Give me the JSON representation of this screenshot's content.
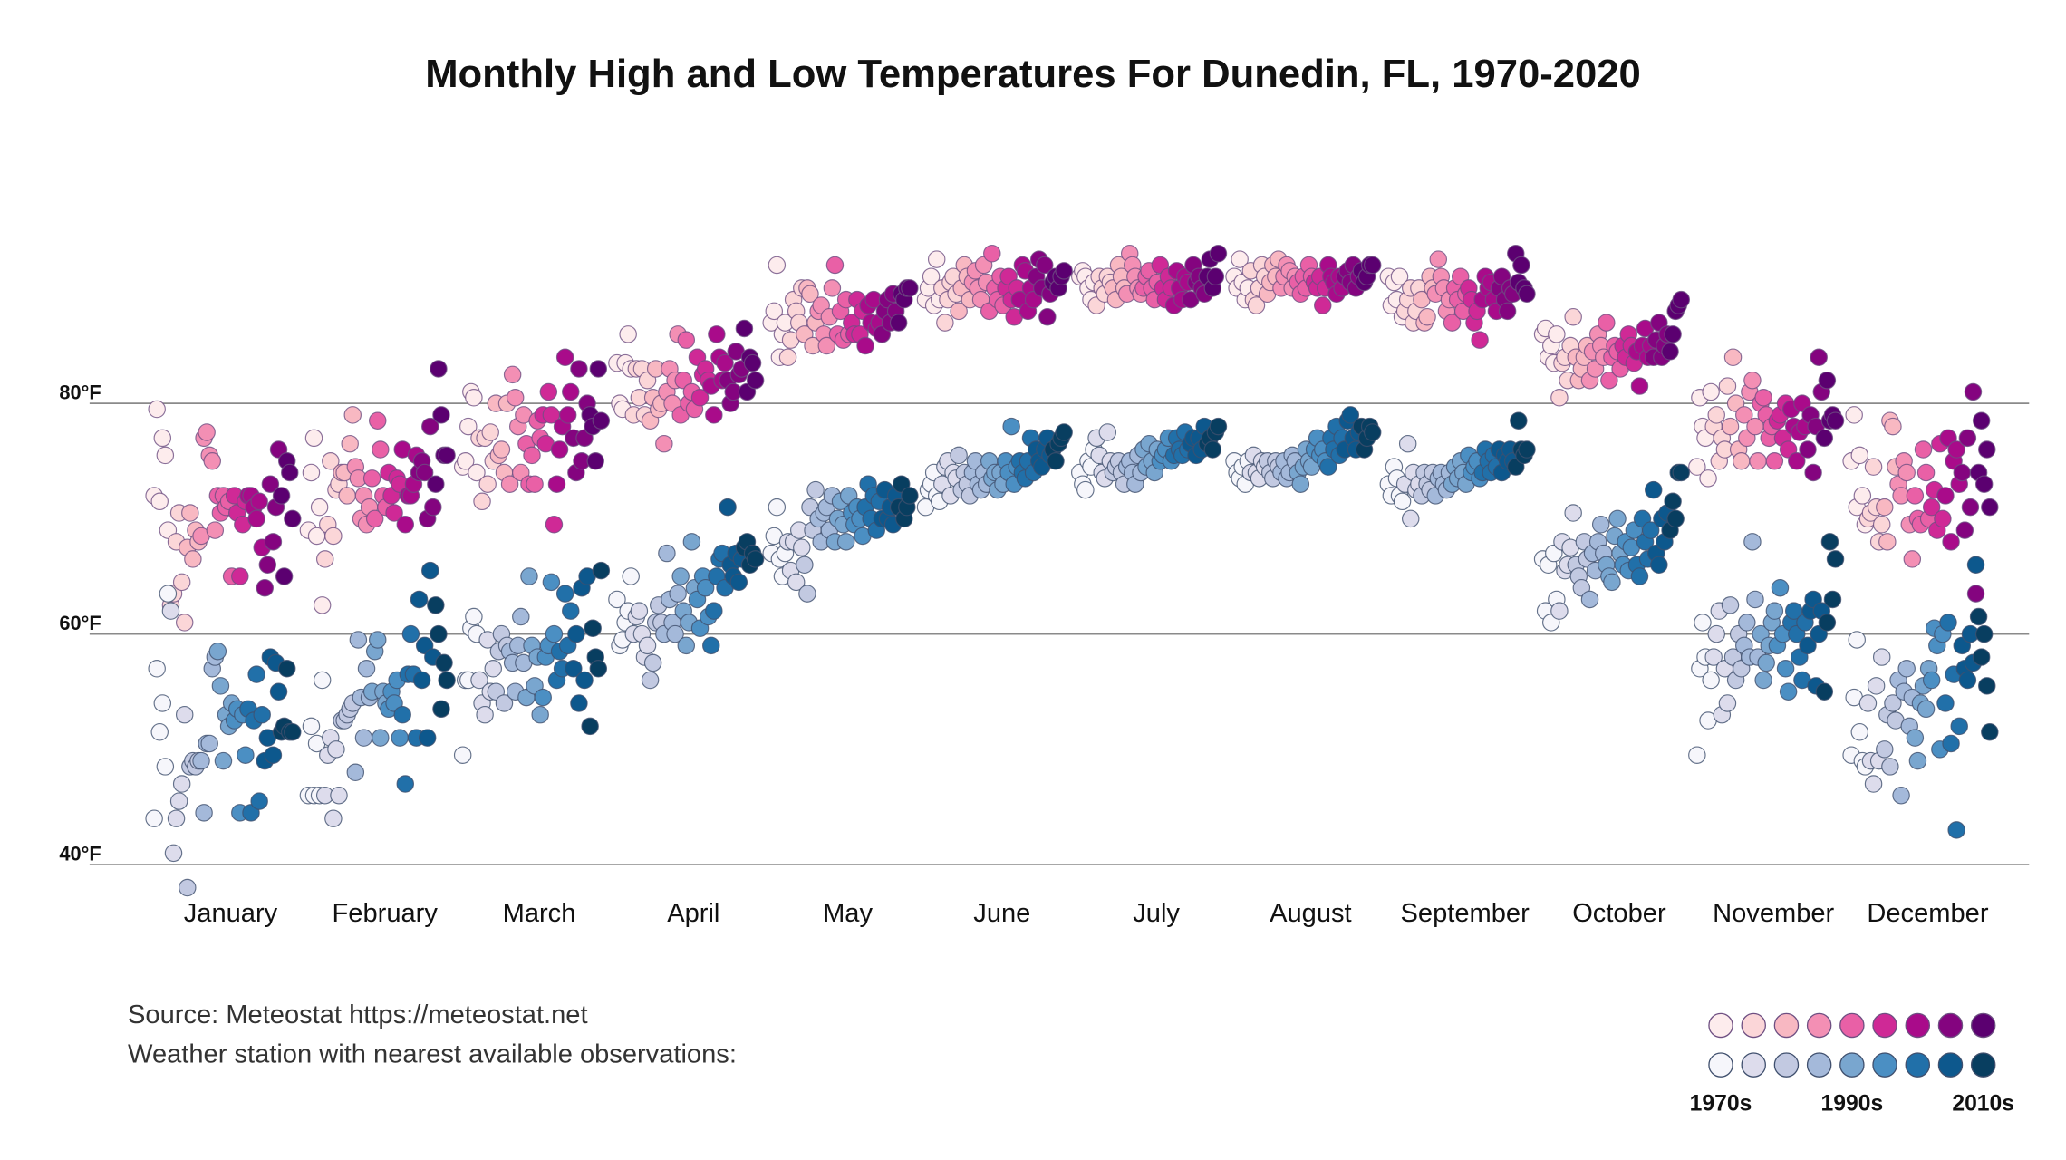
{
  "chart_data": {
    "type": "strip",
    "title": "Monthly High and Low Temperatures For Dunedin, FL, 1970-2020",
    "categories": [
      "January",
      "February",
      "March",
      "April",
      "May",
      "June",
      "July",
      "August",
      "September",
      "October",
      "November",
      "December"
    ],
    "ylim": [
      40,
      100
    ],
    "yticks": [
      {
        "value": 40,
        "label": "40°F"
      },
      {
        "value": 60,
        "label": "60°F"
      },
      {
        "value": 80,
        "label": "80°F"
      }
    ],
    "grid": true,
    "high_colors": [
      "#fdeced",
      "#fbd6d8",
      "#f8b8c2",
      "#f38fb4",
      "#e960a6",
      "#cf2996",
      "#a90b8a",
      "#84047f",
      "#5b0070"
    ],
    "low_colors": [
      "#f6f6fb",
      "#dddcec",
      "#c2c9e1",
      "#a4b9da",
      "#79a6cf",
      "#4b8fc3",
      "#2170a9",
      "#0d588d",
      "#083e60"
    ],
    "highs": [
      [
        72,
        79.5,
        71.5,
        77,
        75.5,
        69,
        62.5,
        63.5,
        68,
        70.5,
        64.5,
        61,
        67.5,
        70.5,
        66.5,
        69,
        68,
        68.5,
        77,
        77.5,
        75.5,
        75,
        69,
        72,
        70.5,
        72,
        71,
        71.5,
        65,
        72,
        70.5,
        65,
        69.5,
        71.5,
        72,
        72,
        71,
        70,
        71.5,
        67.5,
        64,
        66,
        73,
        68,
        71,
        76,
        72,
        65,
        75,
        74,
        70
      ],
      [
        69,
        74,
        77,
        68.5,
        71,
        62.5,
        66.5,
        69.5,
        75,
        68.5,
        72.5,
        73,
        74,
        74,
        72,
        76.5,
        79,
        74.5,
        73.5,
        70,
        72,
        69.5,
        71,
        73.5,
        70,
        78.5,
        76,
        72,
        71,
        74,
        72,
        70.5,
        73.5,
        73,
        76,
        69.5,
        72,
        72,
        73,
        75.5,
        74,
        75,
        74,
        70,
        78,
        71,
        73,
        83,
        79,
        75.5,
        75.5
      ],
      [
        74.5,
        75,
        78,
        81,
        80.5,
        74,
        77,
        71.5,
        77,
        73,
        77.5,
        75,
        80,
        75.5,
        76,
        74,
        80,
        73,
        82.5,
        80.5,
        78,
        74,
        79,
        76.5,
        73,
        75.5,
        73,
        78.5,
        77,
        79,
        76.5,
        81,
        79,
        69.5,
        73,
        76,
        78,
        84,
        79,
        81,
        77,
        74,
        83,
        75,
        77,
        80,
        79,
        78,
        75,
        83,
        78.5
      ],
      [
        83.5,
        80,
        79.5,
        83.5,
        86,
        83,
        79,
        83,
        80.5,
        83,
        79,
        82,
        78.5,
        80.5,
        83,
        79.5,
        80,
        76.5,
        81,
        83,
        80,
        82,
        86,
        79,
        82,
        85.5,
        80,
        81,
        79.5,
        84,
        80.5,
        82.5,
        83,
        82,
        81.5,
        79,
        86,
        84,
        82,
        83.5,
        82,
        80,
        81,
        84.5,
        82.5,
        83,
        86.5,
        81,
        84,
        83.5,
        82
      ],
      [
        87,
        88,
        92,
        84,
        86,
        87,
        84,
        85.5,
        89,
        88,
        87,
        90,
        86,
        90,
        89.5,
        85,
        87,
        88,
        88.5,
        86,
        85,
        87.5,
        90,
        92,
        86,
        88,
        85.5,
        89,
        86,
        87,
        86,
        89,
        86,
        88,
        85,
        88.5,
        87,
        89,
        86.5,
        87,
        86,
        88,
        89,
        87,
        89.5,
        88,
        87,
        89.5,
        89,
        90,
        90
      ],
      [
        89,
        90,
        91,
        88.5,
        92.5,
        89,
        90,
        87,
        89,
        90.5,
        91,
        89.5,
        88,
        90,
        92,
        91,
        89,
        90.5,
        91.5,
        90,
        89,
        92,
        90.5,
        88,
        93,
        90,
        89,
        91,
        88.5,
        90,
        91,
        89,
        87.5,
        90,
        89,
        92,
        91.5,
        88,
        90,
        89,
        91,
        92.5,
        90,
        92,
        87.5,
        89.5,
        90.5,
        91,
        90,
        91,
        91.5
      ],
      [
        91,
        91.5,
        91,
        90,
        89,
        90.5,
        88.5,
        91,
        90,
        89.5,
        91,
        90.5,
        90,
        89,
        92,
        91,
        90,
        89.5,
        93,
        92,
        91,
        90,
        89.5,
        90,
        91,
        91.5,
        90,
        89,
        90.5,
        92,
        90,
        89,
        91,
        90,
        88.5,
        91.5,
        90,
        89,
        91,
        90.5,
        89,
        92,
        90.5,
        91,
        90,
        89.5,
        91,
        92.5,
        90,
        91,
        93
      ],
      [
        91,
        90,
        92.5,
        90.5,
        89,
        90,
        91.5,
        89,
        88.5,
        90,
        92,
        91,
        89.5,
        90.5,
        92,
        91,
        92.5,
        90,
        91,
        92,
        91.5,
        90,
        91,
        90.5,
        89.5,
        91,
        90,
        92,
        91,
        90.5,
        90,
        91,
        88.5,
        90,
        92,
        91,
        90.5,
        89.5,
        91,
        90,
        91,
        91.5,
        90.5,
        92,
        90,
        91,
        91.5,
        90.5,
        91,
        92,
        92
      ],
      [
        91,
        88.5,
        90.5,
        89,
        91,
        87.5,
        88,
        89,
        90,
        87,
        88,
        90,
        89,
        87,
        87.5,
        91,
        90,
        89.5,
        92.5,
        91,
        90,
        88,
        89,
        87,
        90,
        89,
        91,
        88,
        89.5,
        90,
        89,
        87,
        88,
        85.5,
        89,
        91,
        90,
        90.5,
        89,
        88,
        90,
        91,
        89,
        88,
        90,
        89.5,
        93,
        90.5,
        92,
        90,
        89.5
      ],
      [
        86,
        86.5,
        84,
        85,
        83.5,
        86,
        80.5,
        83.5,
        84,
        82,
        85,
        87.5,
        84,
        82,
        83,
        84,
        85,
        82,
        84.5,
        83,
        86,
        85,
        84,
        87,
        82,
        84,
        85,
        84.5,
        83,
        85,
        84,
        86,
        85,
        83.5,
        84.5,
        81.5,
        85,
        86.5,
        84,
        85,
        84,
        85.5,
        87,
        84,
        85,
        86,
        84.5,
        86,
        88,
        88.5,
        89
      ],
      [
        74.5,
        80.5,
        78,
        77,
        73.5,
        81,
        78,
        79,
        75,
        77,
        76,
        81.5,
        78,
        84,
        80,
        76,
        75,
        79,
        77,
        81,
        82,
        78,
        75,
        80,
        80.5,
        79,
        77,
        78,
        75,
        78.5,
        79,
        77,
        80,
        76,
        79.5,
        78,
        75,
        77.5,
        80,
        78,
        76,
        79,
        74,
        78,
        84,
        81,
        77,
        82,
        78.5,
        79,
        78.5
      ],
      [
        75,
        79,
        71,
        75.5,
        72,
        69.5,
        70,
        70.5,
        74.5,
        71,
        68,
        69.5,
        71,
        68,
        78.5,
        78,
        74.5,
        73,
        72,
        75,
        74,
        69.5,
        66.5,
        72,
        70,
        69.5,
        76,
        74,
        70,
        71,
        72.5,
        69,
        76.5,
        70,
        72,
        77,
        68,
        75,
        76,
        73,
        74,
        69,
        77,
        71,
        81,
        63.5,
        74,
        78.5,
        73,
        76,
        71
      ]
    ],
    "lows": [
      [
        44,
        57,
        51.5,
        54,
        48.5,
        63.5,
        62,
        41,
        44,
        45.5,
        47,
        53,
        38,
        48.5,
        49,
        48.5,
        49,
        49,
        44.5,
        50.5,
        50.5,
        57,
        58,
        58.5,
        55.5,
        49,
        53,
        52,
        54,
        52.5,
        53.5,
        44.5,
        53,
        49.5,
        53.5,
        44.5,
        52.5,
        56.5,
        45.5,
        53,
        49,
        51,
        58,
        49.5,
        57.5,
        55,
        51.5,
        52,
        57,
        51.5,
        51.5
      ],
      [
        46,
        52,
        46,
        50.5,
        46,
        56,
        46,
        49.5,
        51,
        44,
        50,
        46,
        52.5,
        52.5,
        53,
        53.5,
        54,
        48,
        59.5,
        54.5,
        51,
        57,
        54.5,
        55,
        58.5,
        59.5,
        51,
        55,
        54,
        53.5,
        55,
        54,
        56,
        51,
        53,
        47,
        56.5,
        60,
        56.5,
        51,
        63,
        56,
        59,
        51,
        65.5,
        58,
        62.5,
        60,
        53.5,
        57.5,
        56
      ],
      [
        49.5,
        56,
        56,
        60.5,
        61.5,
        60,
        56,
        54,
        53,
        59.5,
        55,
        57,
        55,
        58.5,
        60,
        54,
        59,
        58.5,
        57.5,
        55,
        59,
        61.5,
        57.5,
        54.5,
        65,
        59,
        55.5,
        58,
        53,
        54.5,
        58,
        59,
        64.5,
        60,
        56,
        58.5,
        57,
        63.5,
        59,
        62,
        57,
        60,
        54,
        64,
        56,
        65,
        52,
        60.5,
        58,
        57,
        65.5
      ],
      [
        63,
        59,
        59.5,
        61,
        62,
        65,
        60,
        61.5,
        62,
        60,
        58,
        59,
        56,
        57.5,
        61,
        62.5,
        61,
        60,
        67,
        63,
        61,
        60,
        63.5,
        65,
        62,
        59,
        61,
        68,
        64,
        63,
        60.5,
        65,
        64,
        61.5,
        59,
        62,
        65,
        66.5,
        67,
        64,
        71,
        66,
        65,
        67,
        64.5,
        66.5,
        67.5,
        68,
        66,
        67,
        66.5
      ],
      [
        67,
        68.5,
        71,
        66.5,
        65,
        67,
        68,
        65.5,
        68,
        64.5,
        69,
        67.5,
        66,
        63.5,
        71,
        69,
        72.5,
        70,
        68,
        70.5,
        71,
        69,
        72,
        68,
        70,
        71.5,
        69.5,
        68,
        72,
        70.5,
        69.5,
        71,
        70,
        68.5,
        71,
        73,
        70,
        72,
        69,
        71.5,
        70,
        72.5,
        70,
        71,
        69.5,
        72,
        71,
        73,
        70,
        71,
        72
      ],
      [
        71,
        72.5,
        73,
        74,
        72,
        71.5,
        73,
        74.5,
        75,
        72,
        74,
        73.5,
        75.5,
        72.5,
        74,
        73,
        72,
        74,
        75,
        73,
        72.5,
        74,
        73,
        75,
        73.5,
        74,
        72.5,
        74,
        73,
        75,
        74,
        78,
        73,
        74.5,
        75,
        74,
        73.5,
        75,
        77,
        74,
        76,
        75,
        74.5,
        76,
        77,
        75.5,
        76,
        75,
        76.5,
        77,
        77.5
      ],
      [
        74,
        73,
        72.5,
        75,
        74.5,
        76,
        77,
        75.5,
        74,
        73.5,
        77.5,
        75,
        74,
        74.5,
        75,
        74,
        73,
        74.5,
        75,
        74,
        73,
        75.5,
        74,
        76,
        74.5,
        76.5,
        75,
        74,
        76,
        75,
        75.5,
        76,
        77,
        75,
        75.5,
        77,
        76,
        75.5,
        77.5,
        76,
        76.5,
        77,
        75.5,
        77,
        76,
        78,
        76.5,
        77,
        76,
        77.5,
        78
      ],
      [
        75,
        74,
        73.5,
        74.5,
        73,
        75,
        74,
        75.5,
        74,
        73.5,
        75,
        74.5,
        75,
        74,
        73.5,
        75,
        74.5,
        74,
        75,
        73.5,
        74,
        75.5,
        75,
        74,
        73,
        74.5,
        76,
        75,
        74.5,
        76,
        77,
        75.5,
        76,
        75,
        74.5,
        77,
        76,
        78,
        75.5,
        77,
        76,
        78.5,
        79,
        77,
        76,
        77.5,
        78,
        76,
        77,
        78,
        77.5
      ],
      [
        73,
        72,
        74.5,
        73.5,
        72,
        71.5,
        73,
        76.5,
        70,
        74,
        72.5,
        73,
        72,
        74,
        73,
        72.5,
        74,
        72,
        73.5,
        74,
        73,
        72.5,
        74,
        73,
        74.5,
        73.5,
        75,
        74,
        73,
        75.5,
        74,
        74.5,
        75,
        73.5,
        74,
        76,
        75,
        74,
        75.5,
        74.5,
        76,
        74,
        75.5,
        75,
        76,
        75,
        74.5,
        78.5,
        76,
        75.5,
        76
      ],
      [
        66.5,
        62,
        66,
        61,
        67,
        63,
        62,
        68,
        65.5,
        66,
        67.5,
        70.5,
        66,
        65,
        64,
        68,
        66.5,
        63,
        67,
        65.5,
        68,
        69.5,
        67,
        66,
        65,
        64.5,
        68.5,
        70,
        67,
        66,
        68,
        65.5,
        67.5,
        69,
        66,
        65,
        70,
        68,
        66.5,
        69,
        72.5,
        67,
        66,
        70,
        68,
        70.5,
        69,
        71.5,
        70,
        74,
        74
      ],
      [
        49.5,
        57,
        61,
        58,
        52.5,
        56,
        58,
        60,
        62,
        53,
        57,
        54,
        62.5,
        58,
        56,
        60,
        57,
        59,
        61,
        58,
        68,
        63,
        58,
        60,
        56,
        57.5,
        59,
        61,
        62,
        59,
        64,
        60,
        57,
        55,
        61,
        62,
        60,
        58,
        56,
        61,
        59,
        62,
        63,
        55.5,
        60,
        62,
        55,
        61,
        68,
        63,
        66.5
      ],
      [
        49.5,
        54.5,
        59.5,
        51.5,
        49,
        48.5,
        54,
        49,
        47,
        55.5,
        49,
        58,
        50,
        53,
        48.5,
        54,
        52.5,
        56,
        46,
        55,
        57,
        52,
        54.5,
        51,
        49,
        54,
        55.5,
        53.5,
        57,
        56,
        60.5,
        59,
        50,
        60,
        54,
        61,
        50.5,
        56.5,
        43,
        52,
        59,
        57,
        56,
        60,
        57.5,
        66,
        61.5,
        58,
        60,
        55.5,
        51.5
      ]
    ],
    "source": "Source: Meteostat https://meteostat.net",
    "note": "Weather station with nearest available observations:",
    "legend": {
      "labels": [
        "1970s",
        "1990s",
        "2010s"
      ]
    }
  }
}
